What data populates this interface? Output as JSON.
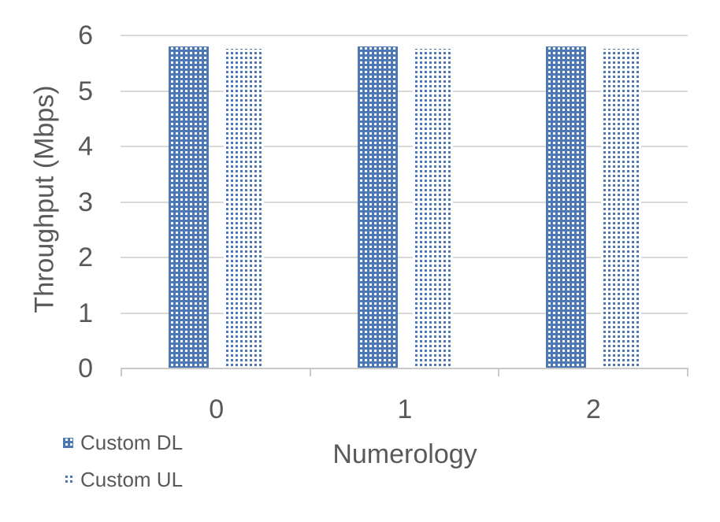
{
  "chart_data": {
    "type": "bar",
    "title": "",
    "categories": [
      "0",
      "1",
      "2"
    ],
    "series": [
      {
        "name": "Custom DL",
        "values": [
          5.8,
          5.8,
          5.8
        ],
        "pattern": "white-dots-on-blue"
      },
      {
        "name": "Custom UL",
        "values": [
          5.76,
          5.76,
          5.76
        ],
        "pattern": "blue-dots-on-white"
      }
    ],
    "xlabel": "Numerology",
    "ylabel": "Throughput (Mbps)",
    "ylim": [
      0,
      6
    ],
    "yticks": [
      0,
      1,
      2,
      3,
      4,
      5,
      6
    ],
    "grid": true,
    "legend_position": "bottom-left",
    "colors": {
      "bar_blue": "#4C79B6",
      "gridline": "#D9D9D9",
      "axis_line": "#C9C9C9",
      "text": "#595959"
    }
  }
}
